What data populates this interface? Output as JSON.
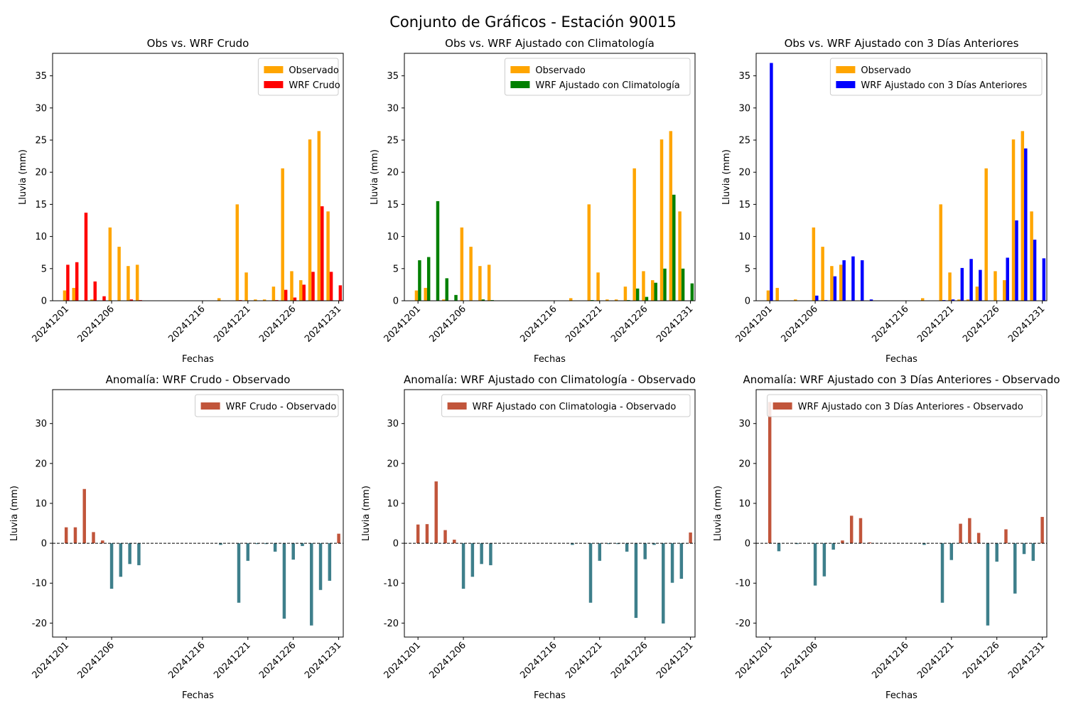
{
  "figure": {
    "title": "Conjunto de Gráficos - Estación 90015"
  },
  "chart_data": [
    {
      "type": "bar",
      "title": "Obs vs. WRF Crudo",
      "xlabel": "Fechas",
      "ylabel": "Lluvia (mm)",
      "ylim": [
        0,
        38.5
      ],
      "yticks": [
        0,
        5,
        10,
        15,
        20,
        25,
        30,
        35
      ],
      "xticks": [
        "20241201",
        "20241206",
        "20241216",
        "20241221",
        "20241226",
        "20241231"
      ],
      "legend_position": "upper-right",
      "dates": [
        "20241201",
        "20241202",
        "20241203",
        "20241204",
        "20241205",
        "20241206",
        "20241207",
        "20241208",
        "20241209",
        "20241210",
        "20241211",
        "20241212",
        "20241213",
        "20241214",
        "20241215",
        "20241216",
        "20241217",
        "20241218",
        "20241219",
        "20241220",
        "20241221",
        "20241222",
        "20241223",
        "20241224",
        "20241225",
        "20241226",
        "20241227",
        "20241228",
        "20241229",
        "20241230",
        "20241231"
      ],
      "series": [
        {
          "name": "Observado",
          "color": "#ffa500",
          "values": [
            1.6,
            2.0,
            0.0,
            0.2,
            0.0,
            11.4,
            8.4,
            5.4,
            5.6,
            0,
            0,
            0,
            0,
            0,
            0,
            0,
            0,
            0.4,
            0,
            15.0,
            4.4,
            0.2,
            0.2,
            2.2,
            20.6,
            4.6,
            3.2,
            25.1,
            26.4,
            13.9,
            0.0
          ]
        },
        {
          "name": "WRF Crudo",
          "color": "#ff0000",
          "values": [
            5.6,
            6.0,
            13.7,
            3.0,
            0.7,
            0.0,
            0.0,
            0.2,
            0.1,
            0,
            0,
            0,
            0,
            0,
            0,
            0,
            0,
            0,
            0,
            0.1,
            0,
            0,
            0,
            0.1,
            1.7,
            0.5,
            2.5,
            4.5,
            14.7,
            4.5,
            2.4
          ]
        }
      ]
    },
    {
      "type": "bar",
      "title": "Obs vs. WRF Ajustado con Climatología",
      "xlabel": "Fechas",
      "ylabel": "Lluvia (mm)",
      "ylim": [
        0,
        38.5
      ],
      "yticks": [
        0,
        5,
        10,
        15,
        20,
        25,
        30,
        35
      ],
      "xticks": [
        "20241201",
        "20241206",
        "20241216",
        "20241221",
        "20241226",
        "20241231"
      ],
      "legend_position": "upper-right",
      "dates": [
        "20241201",
        "20241202",
        "20241203",
        "20241204",
        "20241205",
        "20241206",
        "20241207",
        "20241208",
        "20241209",
        "20241210",
        "20241211",
        "20241212",
        "20241213",
        "20241214",
        "20241215",
        "20241216",
        "20241217",
        "20241218",
        "20241219",
        "20241220",
        "20241221",
        "20241222",
        "20241223",
        "20241224",
        "20241225",
        "20241226",
        "20241227",
        "20241228",
        "20241229",
        "20241230",
        "20241231"
      ],
      "series": [
        {
          "name": "Observado",
          "color": "#ffa500",
          "values": [
            1.6,
            2.0,
            0.0,
            0.2,
            0.0,
            11.4,
            8.4,
            5.4,
            5.6,
            0,
            0,
            0,
            0,
            0,
            0,
            0,
            0,
            0.4,
            0,
            15.0,
            4.4,
            0.2,
            0.2,
            2.2,
            20.6,
            4.6,
            3.2,
            25.1,
            26.4,
            13.9,
            0.0
          ]
        },
        {
          "name": "WRF Ajustado con Climatología",
          "color": "#008000",
          "values": [
            6.3,
            6.8,
            15.5,
            3.5,
            0.9,
            0.0,
            0.0,
            0.2,
            0.1,
            0,
            0,
            0,
            0,
            0,
            0,
            0,
            0,
            0,
            0,
            0.1,
            0,
            0,
            0,
            0.1,
            1.9,
            0.6,
            2.8,
            5.0,
            16.5,
            5.0,
            2.7
          ]
        }
      ]
    },
    {
      "type": "bar",
      "title": "Obs vs. WRF Ajustado con 3 Días Anteriores",
      "xlabel": "Fechas",
      "ylabel": "Lluvia (mm)",
      "ylim": [
        0,
        38.5
      ],
      "yticks": [
        0,
        5,
        10,
        15,
        20,
        25,
        30,
        35
      ],
      "xticks": [
        "20241201",
        "20241206",
        "20241216",
        "20241221",
        "20241226",
        "20241231"
      ],
      "legend_position": "upper-right",
      "dates": [
        "20241201",
        "20241202",
        "20241203",
        "20241204",
        "20241205",
        "20241206",
        "20241207",
        "20241208",
        "20241209",
        "20241210",
        "20241211",
        "20241212",
        "20241213",
        "20241214",
        "20241215",
        "20241216",
        "20241217",
        "20241218",
        "20241219",
        "20241220",
        "20241221",
        "20241222",
        "20241223",
        "20241224",
        "20241225",
        "20241226",
        "20241227",
        "20241228",
        "20241229",
        "20241230",
        "20241231"
      ],
      "series": [
        {
          "name": "Observado",
          "color": "#ffa500",
          "values": [
            1.6,
            2.0,
            0.0,
            0.2,
            0.0,
            11.4,
            8.4,
            5.4,
            5.6,
            0,
            0,
            0,
            0,
            0,
            0,
            0,
            0,
            0.4,
            0,
            15.0,
            4.4,
            0.2,
            0.2,
            2.2,
            20.6,
            4.6,
            3.2,
            25.1,
            26.4,
            13.9,
            0.0
          ]
        },
        {
          "name": "WRF Ajustado con 3 Días Anteriores",
          "color": "#0000ff",
          "values": [
            37.0,
            0,
            0,
            0,
            0,
            0.8,
            0.1,
            3.8,
            6.3,
            6.9,
            6.3,
            0.2,
            0,
            0,
            0,
            0,
            0,
            0,
            0,
            0.1,
            0.2,
            5.1,
            6.5,
            4.8,
            0,
            0,
            6.7,
            12.5,
            23.7,
            9.5,
            6.6
          ]
        }
      ]
    },
    {
      "type": "bar",
      "title": "Anomalía: WRF Crudo - Observado",
      "xlabel": "Fechas",
      "ylabel": "Lluvia (mm)",
      "ylim": [
        -23.5,
        38.5
      ],
      "yticks": [
        -20,
        -10,
        0,
        10,
        20,
        30
      ],
      "xticks": [
        "20241201",
        "20241206",
        "20241216",
        "20241221",
        "20241226",
        "20241231"
      ],
      "legend_position": "upper-right",
      "zero_line": "dashed",
      "positive_color": "#c1553b",
      "negative_color": "#3e7f8b",
      "dates": [
        "20241201",
        "20241202",
        "20241203",
        "20241204",
        "20241205",
        "20241206",
        "20241207",
        "20241208",
        "20241209",
        "20241210",
        "20241211",
        "20241212",
        "20241213",
        "20241214",
        "20241215",
        "20241216",
        "20241217",
        "20241218",
        "20241219",
        "20241220",
        "20241221",
        "20241222",
        "20241223",
        "20241224",
        "20241225",
        "20241226",
        "20241227",
        "20241228",
        "20241229",
        "20241230",
        "20241231"
      ],
      "series": [
        {
          "name": "WRF Crudo - Observado",
          "color": "#c1553b",
          "values": [
            4.0,
            4.0,
            13.6,
            2.8,
            0.7,
            -11.4,
            -8.4,
            -5.2,
            -5.5,
            0,
            0,
            0,
            0,
            0,
            0,
            0,
            0,
            -0.4,
            0,
            -14.9,
            -4.4,
            -0.2,
            -0.2,
            -2.1,
            -18.9,
            -4.1,
            -0.7,
            -20.6,
            -11.7,
            -9.4,
            2.4
          ]
        }
      ]
    },
    {
      "type": "bar",
      "title": "Anomalía: WRF Ajustado con Climatología - Observado",
      "xlabel": "Fechas",
      "ylabel": "Lluvia (mm)",
      "ylim": [
        -23.5,
        38.5
      ],
      "yticks": [
        -20,
        -10,
        0,
        10,
        20,
        30
      ],
      "xticks": [
        "20241201",
        "20241206",
        "20241216",
        "20241221",
        "20241226",
        "20241231"
      ],
      "legend_position": "upper-right",
      "zero_line": "dashed",
      "positive_color": "#c1553b",
      "negative_color": "#3e7f8b",
      "dates": [
        "20241201",
        "20241202",
        "20241203",
        "20241204",
        "20241205",
        "20241206",
        "20241207",
        "20241208",
        "20241209",
        "20241210",
        "20241211",
        "20241212",
        "20241213",
        "20241214",
        "20241215",
        "20241216",
        "20241217",
        "20241218",
        "20241219",
        "20241220",
        "20241221",
        "20241222",
        "20241223",
        "20241224",
        "20241225",
        "20241226",
        "20241227",
        "20241228",
        "20241229",
        "20241230",
        "20241231"
      ],
      "series": [
        {
          "name": "WRF Ajustado con Climatologia - Observado",
          "color": "#c1553b",
          "values": [
            4.7,
            4.8,
            15.5,
            3.3,
            0.9,
            -11.4,
            -8.4,
            -5.2,
            -5.5,
            0,
            0,
            0,
            0,
            0,
            0,
            0,
            0,
            -0.4,
            0,
            -14.9,
            -4.4,
            -0.2,
            -0.2,
            -2.1,
            -18.7,
            -4.0,
            -0.4,
            -20.1,
            -9.9,
            -8.9,
            2.7
          ]
        }
      ]
    },
    {
      "type": "bar",
      "title": "Anomalía: WRF Ajustado con 3 Días Anteriores - Observado",
      "xlabel": "Fechas",
      "ylabel": "Lluvia (mm)",
      "ylim": [
        -23.5,
        38.5
      ],
      "yticks": [
        -20,
        -10,
        0,
        10,
        20,
        30
      ],
      "xticks": [
        "20241201",
        "20241206",
        "20241216",
        "20241221",
        "20241226",
        "20241231"
      ],
      "legend_position": "upper-right",
      "zero_line": "dashed",
      "positive_color": "#c1553b",
      "negative_color": "#3e7f8b",
      "dates": [
        "20241201",
        "20241202",
        "20241203",
        "20241204",
        "20241205",
        "20241206",
        "20241207",
        "20241208",
        "20241209",
        "20241210",
        "20241211",
        "20241212",
        "20241213",
        "20241214",
        "20241215",
        "20241216",
        "20241217",
        "20241218",
        "20241219",
        "20241220",
        "20241221",
        "20241222",
        "20241223",
        "20241224",
        "20241225",
        "20241226",
        "20241227",
        "20241228",
        "20241229",
        "20241230",
        "20241231"
      ],
      "series": [
        {
          "name": "WRF Ajustado con 3 Días Anteriores - Observado",
          "color": "#c1553b",
          "values": [
            35.4,
            -2.0,
            0,
            -0.2,
            0,
            -10.6,
            -8.3,
            -1.6,
            0.7,
            6.9,
            6.3,
            0.2,
            0,
            0,
            0,
            0,
            0,
            -0.4,
            0,
            -14.9,
            -4.2,
            4.9,
            6.3,
            2.6,
            -20.6,
            -4.6,
            3.5,
            -12.6,
            -2.7,
            -4.4,
            6.6
          ]
        }
      ]
    }
  ]
}
